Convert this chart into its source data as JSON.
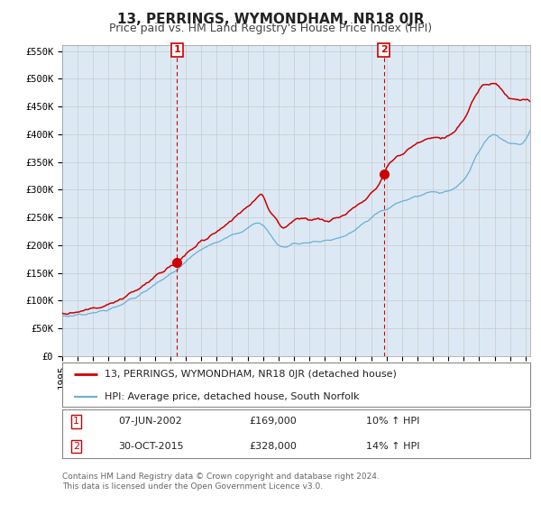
{
  "title": "13, PERRINGS, WYMONDHAM, NR18 0JR",
  "subtitle": "Price paid vs. HM Land Registry's House Price Index (HPI)",
  "bg_color": "#dce9f5",
  "outer_bg_color": "#ffffff",
  "hpi_color": "#6baed6",
  "price_color": "#cc0000",
  "marker_color": "#cc0000",
  "dashed_line_color": "#cc0000",
  "annotation_box_color": "#cc0000",
  "ylim": [
    0,
    560000
  ],
  "yticks": [
    0,
    50000,
    100000,
    150000,
    200000,
    250000,
    300000,
    350000,
    400000,
    450000,
    500000,
    550000
  ],
  "ytick_labels": [
    "£0",
    "£50K",
    "£100K",
    "£150K",
    "£200K",
    "£250K",
    "£300K",
    "£350K",
    "£400K",
    "£450K",
    "£500K",
    "£550K"
  ],
  "xlim_start": 1995.0,
  "xlim_end": 2025.3,
  "xtick_years": [
    1995,
    1996,
    1997,
    1998,
    1999,
    2000,
    2001,
    2002,
    2003,
    2004,
    2005,
    2006,
    2007,
    2008,
    2009,
    2010,
    2011,
    2012,
    2013,
    2014,
    2015,
    2016,
    2017,
    2018,
    2019,
    2020,
    2021,
    2022,
    2023,
    2024,
    2025
  ],
  "marker1_x": 2002.44,
  "marker1_y": 169000,
  "marker1_label": "1",
  "marker2_x": 2015.83,
  "marker2_y": 328000,
  "marker2_label": "2",
  "legend_price_label": "13, PERRINGS, WYMONDHAM, NR18 0JR (detached house)",
  "legend_hpi_label": "HPI: Average price, detached house, South Norfolk",
  "table_row1": [
    "1",
    "07-JUN-2002",
    "£169,000",
    "10% ↑ HPI"
  ],
  "table_row2": [
    "2",
    "30-OCT-2015",
    "£328,000",
    "14% ↑ HPI"
  ],
  "footnote1": "Contains HM Land Registry data © Crown copyright and database right 2024.",
  "footnote2": "This data is licensed under the Open Government Licence v3.0.",
  "title_fontsize": 11,
  "subtitle_fontsize": 9,
  "tick_fontsize": 7.5,
  "legend_fontsize": 8,
  "table_fontsize": 8,
  "footnote_fontsize": 6.5
}
